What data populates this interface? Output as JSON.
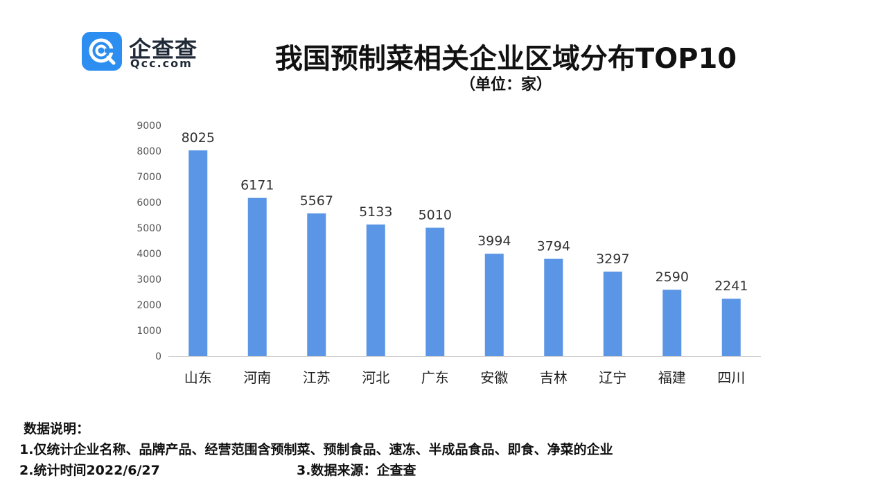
{
  "logo": {
    "name": "企查查",
    "domain": "Qcc.com",
    "brand_color": "#2b8ef0"
  },
  "header": {
    "title": "我国预制菜相关企业区域分布TOP10",
    "subtitle": "（单位：家）"
  },
  "chart_data": {
    "type": "bar",
    "categories": [
      "山东",
      "河南",
      "江苏",
      "河北",
      "广东",
      "安徽",
      "吉林",
      "辽宁",
      "福建",
      "四川"
    ],
    "values": [
      8025,
      6171,
      5567,
      5133,
      5010,
      3994,
      3794,
      3297,
      2590,
      2241
    ],
    "ylim": [
      0,
      9000
    ],
    "yticks": [
      0,
      1000,
      2000,
      3000,
      4000,
      5000,
      6000,
      7000,
      8000,
      9000
    ],
    "data_labels": true,
    "grid": false,
    "bar_color": "#5b95e5"
  },
  "notes": {
    "heading": "数据说明：",
    "line1": "1.仅统计企业名称、品牌产品、经营范围含预制菜、预制食品、速冻、半成品食品、即食、净菜的企业",
    "line2": "2.统计时间2022/6/27",
    "source": "3.数据来源：企查查"
  }
}
